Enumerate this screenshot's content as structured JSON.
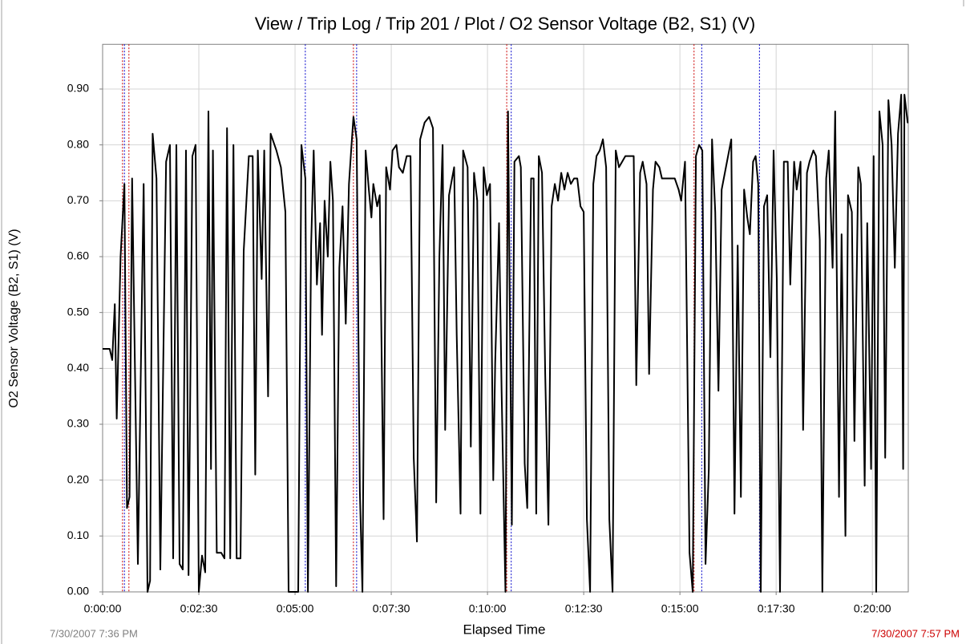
{
  "chart_data": {
    "type": "line",
    "title": "View / Trip Log / Trip 201 / Plot / O2 Sensor Voltage (B2, S1) (V)",
    "x_label": "Elapsed Time",
    "y_label": "O2 Sensor Voltage (B2, S1) (V)",
    "start_time": "7/30/2007 7:36 PM",
    "end_time": "7/30/2007 7:57 PM",
    "start_color": "#808080",
    "end_color": "#cc0000",
    "grid": true,
    "xlim": [
      0,
      1256
    ],
    "ylim": [
      0,
      0.98
    ],
    "xticks": [
      {
        "value": 0,
        "label": "0:00:00"
      },
      {
        "value": 150,
        "label": "0:02:30"
      },
      {
        "value": 300,
        "label": "0:05:00"
      },
      {
        "value": 450,
        "label": "0:07:30"
      },
      {
        "value": 600,
        "label": "0:10:00"
      },
      {
        "value": 750,
        "label": "0:12:30"
      },
      {
        "value": 900,
        "label": "0:15:00"
      },
      {
        "value": 1050,
        "label": "0:17:30"
      },
      {
        "value": 1200,
        "label": "0:20:00"
      }
    ],
    "yticks": [
      {
        "value": 0,
        "label": "0.00"
      },
      {
        "value": 0.1,
        "label": "0.10"
      },
      {
        "value": 0.2,
        "label": "0.20"
      },
      {
        "value": 0.3,
        "label": "0.30"
      },
      {
        "value": 0.4,
        "label": "0.40"
      },
      {
        "value": 0.5,
        "label": "0.50"
      },
      {
        "value": 0.6,
        "label": "0.60"
      },
      {
        "value": 0.7,
        "label": "0.70"
      },
      {
        "value": 0.8,
        "label": "0.80"
      },
      {
        "value": 0.9,
        "label": "0.90"
      }
    ],
    "markers": [
      {
        "x": 31,
        "color": "#cc0000"
      },
      {
        "x": 34,
        "color": "#0000cc"
      },
      {
        "x": 41,
        "color": "#cc0000"
      },
      {
        "x": 316,
        "color": "#0000cc"
      },
      {
        "x": 391,
        "color": "#cc0000"
      },
      {
        "x": 396,
        "color": "#0000cc"
      },
      {
        "x": 630,
        "color": "#cc0000"
      },
      {
        "x": 637,
        "color": "#0000cc"
      },
      {
        "x": 922,
        "color": "#cc0000"
      },
      {
        "x": 934,
        "color": "#0000cc"
      },
      {
        "x": 1024,
        "color": "#0000cc"
      }
    ],
    "series": [
      {
        "name": "O2 Sensor Voltage (B2, S1)",
        "color": "#000000",
        "x": [
          0,
          11,
          15,
          19,
          22,
          28,
          34,
          38,
          42,
          46,
          55,
          64,
          70,
          74,
          78,
          84,
          90,
          99,
          105,
          110,
          115,
          120,
          125,
          130,
          134,
          140,
          145,
          150,
          155,
          160,
          165,
          169,
          172,
          178,
          185,
          190,
          194,
          199,
          204,
          209,
          215,
          220,
          228,
          234,
          238,
          242,
          248,
          252,
          258,
          262,
          271,
          278,
          285,
          290,
          305,
          310,
          316,
          320,
          325,
          329,
          334,
          339,
          342,
          346,
          351,
          355,
          359,
          364,
          369,
          374,
          379,
          384,
          388,
          391,
          396,
          401,
          405,
          410,
          415,
          419,
          422,
          428,
          432,
          438,
          442,
          448,
          452,
          458,
          462,
          468,
          474,
          480,
          485,
          490,
          495,
          502,
          509,
          515,
          520,
          525,
          530,
          534,
          540,
          548,
          552,
          558,
          562,
          569,
          574,
          579,
          584,
          589,
          594,
          599,
          604,
          609,
          612,
          618,
          622,
          628,
          632,
          638,
          642,
          649,
          652,
          658,
          662,
          668,
          672,
          676,
          680,
          685,
          690,
          695,
          700,
          705,
          710,
          715,
          720,
          725,
          730,
          735,
          740,
          745,
          750,
          755,
          760,
          765,
          770,
          775,
          780,
          785,
          790,
          795,
          800,
          805,
          810,
          815,
          820,
          828,
          832,
          838,
          842,
          848,
          852,
          858,
          862,
          868,
          872,
          880,
          888,
          892,
          898,
          902,
          908,
          911,
          915,
          920,
          925,
          930,
          935,
          940,
          945,
          950,
          955,
          960,
          965,
          970,
          975,
          980,
          985,
          990,
          995,
          1000,
          1005,
          1009,
          1014,
          1018,
          1022,
          1026,
          1031,
          1036,
          1041,
          1046,
          1051,
          1056,
          1062,
          1068,
          1072,
          1078,
          1082,
          1088,
          1092,
          1098,
          1102,
          1108,
          1112,
          1118,
          1122,
          1128,
          1132,
          1138,
          1142,
          1148,
          1152,
          1158,
          1162,
          1168,
          1172,
          1178,
          1182,
          1188,
          1192,
          1198,
          1202,
          1206,
          1211,
          1216,
          1220,
          1225,
          1230,
          1235,
          1240,
          1245,
          1248,
          1250,
          1255,
          1256
        ],
        "values": [
          0.435,
          0.435,
          0.415,
          0.515,
          0.31,
          0.6,
          0.73,
          0.15,
          0.17,
          0.74,
          0.05,
          0.73,
          0,
          0.02,
          0.82,
          0.74,
          0.04,
          0.77,
          0.8,
          0.06,
          0.8,
          0.05,
          0.04,
          0.79,
          0.03,
          0.78,
          0.8,
          0,
          0.065,
          0.035,
          0.86,
          0.22,
          0.79,
          0.07,
          0.07,
          0.06,
          0.83,
          0.06,
          0.8,
          0.06,
          0.06,
          0.61,
          0.78,
          0.78,
          0.21,
          0.79,
          0.56,
          0.79,
          0.35,
          0.82,
          0.79,
          0.76,
          0.68,
          0,
          0,
          0.8,
          0.74,
          0,
          0.62,
          0.79,
          0.55,
          0.66,
          0.46,
          0.7,
          0.6,
          0.77,
          0.7,
          0.01,
          0.58,
          0.69,
          0.48,
          0.73,
          0.8,
          0.85,
          0.81,
          0.18,
          0,
          0.79,
          0.72,
          0.67,
          0.73,
          0.69,
          0.71,
          0.13,
          0.76,
          0.72,
          0.79,
          0.8,
          0.76,
          0.75,
          0.78,
          0.78,
          0.24,
          0.09,
          0.81,
          0.84,
          0.85,
          0.83,
          0.16,
          0.6,
          0.8,
          0.29,
          0.71,
          0.76,
          0.46,
          0.14,
          0.79,
          0.76,
          0.26,
          0.75,
          0.7,
          0.14,
          0.76,
          0.71,
          0.73,
          0.2,
          0.41,
          0.66,
          0.36,
          0,
          0.86,
          0.12,
          0.77,
          0.78,
          0.76,
          0.23,
          0.15,
          0.74,
          0.74,
          0.14,
          0.78,
          0.75,
          0.39,
          0.12,
          0.69,
          0.73,
          0.7,
          0.75,
          0.72,
          0.75,
          0.73,
          0.74,
          0.74,
          0.69,
          0.68,
          0.13,
          0,
          0.73,
          0.78,
          0.79,
          0.81,
          0.76,
          0.13,
          0,
          0.79,
          0.76,
          0.77,
          0.78,
          0.78,
          0.78,
          0.37,
          0.75,
          0.77,
          0.73,
          0.39,
          0.72,
          0.77,
          0.76,
          0.74,
          0.74,
          0.74,
          0.74,
          0.72,
          0.7,
          0.77,
          0.47,
          0.07,
          0,
          0.78,
          0.8,
          0.79,
          0.05,
          0.22,
          0.81,
          0.68,
          0.36,
          0.72,
          0.75,
          0.78,
          0.81,
          0.14,
          0.62,
          0.17,
          0.72,
          0.67,
          0.64,
          0.77,
          0.78,
          0.73,
          0,
          0.69,
          0.71,
          0.42,
          0.79,
          0.56,
          0,
          0.77,
          0.77,
          0.55,
          0.77,
          0.72,
          0.77,
          0.29,
          0.75,
          0.77,
          0.79,
          0.78,
          0.63,
          0,
          0.74,
          0.79,
          0.58,
          0.86,
          0.17,
          0.64,
          0.1,
          0.71,
          0.68,
          0.27,
          0.76,
          0.73,
          0.19,
          0.66,
          0.22,
          0.78,
          0,
          0.86,
          0.8,
          0.24,
          0.88,
          0.8,
          0.58,
          0.82,
          0.89,
          0.22,
          0.89,
          0.84,
          0.84
        ]
      }
    ]
  }
}
